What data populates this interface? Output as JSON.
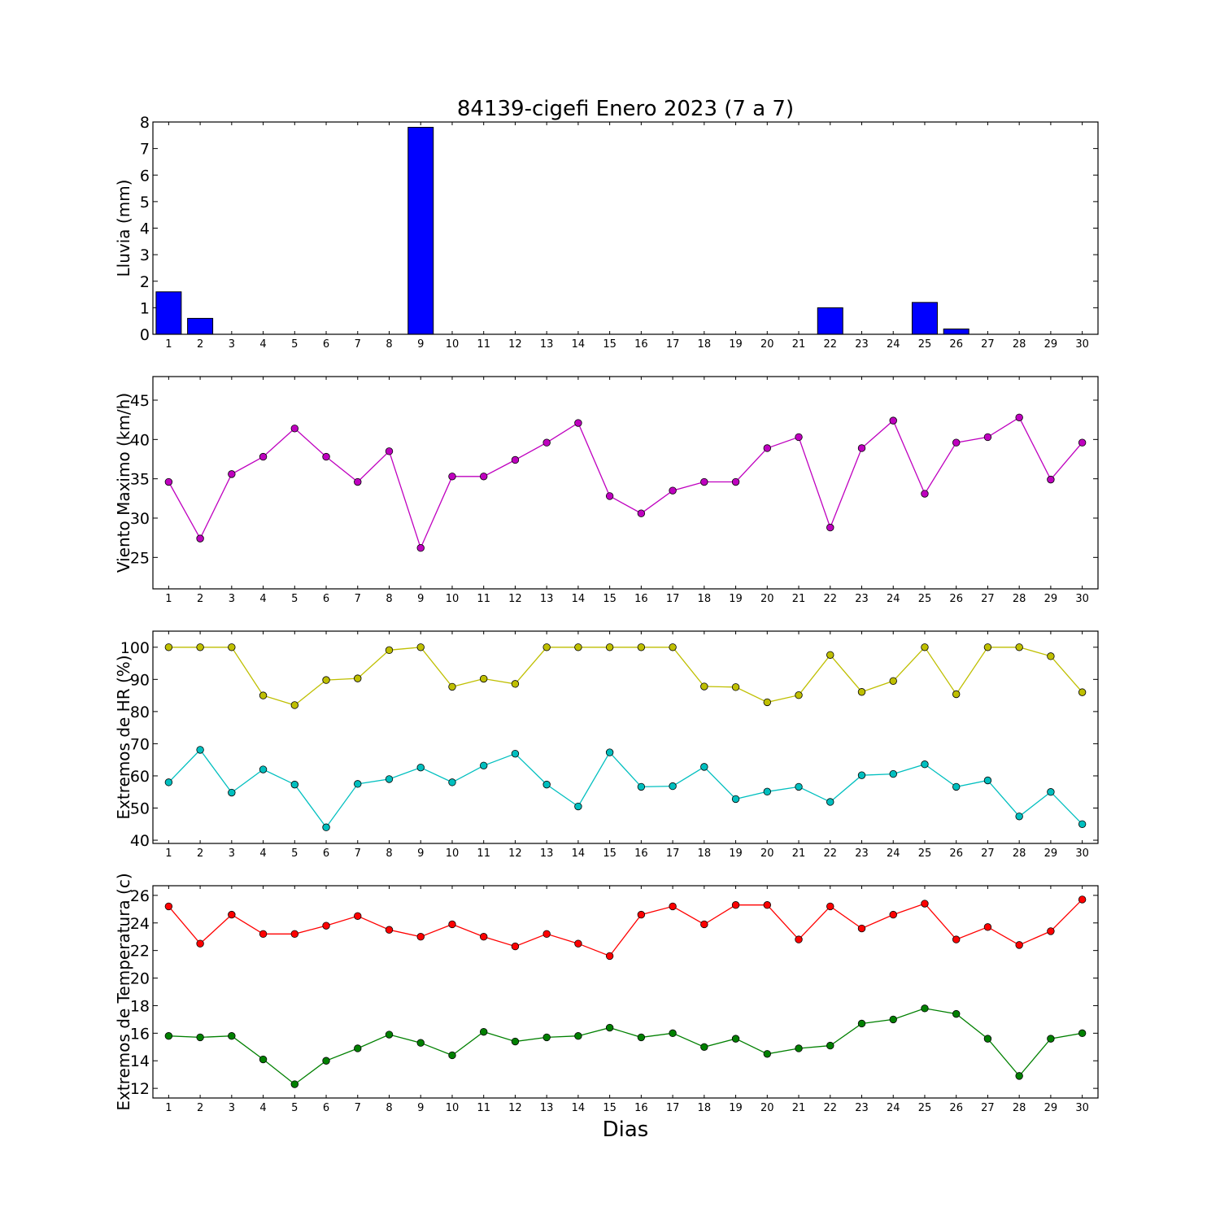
{
  "title": "84139-cigefi Enero 2023  (7 a 7)",
  "xlabel": "Dias",
  "chart_data": [
    {
      "type": "bar",
      "ylabel": "Lluvia (mm)",
      "x": [
        1,
        2,
        3,
        4,
        5,
        6,
        7,
        8,
        9,
        10,
        11,
        12,
        13,
        14,
        15,
        16,
        17,
        18,
        19,
        20,
        21,
        22,
        23,
        24,
        25,
        26,
        27,
        28,
        29,
        30
      ],
      "ylim": [
        0,
        8
      ],
      "yticks": [
        0,
        1,
        2,
        3,
        4,
        5,
        6,
        7,
        8
      ],
      "series": [
        {
          "color": "#0000ff",
          "values": [
            1.6,
            0.6,
            0,
            0,
            0,
            0,
            0,
            0,
            7.8,
            0,
            0,
            0,
            0,
            0,
            0,
            0,
            0,
            0,
            0,
            0,
            0,
            1.0,
            0,
            0,
            1.2,
            0.2,
            0,
            0,
            0,
            0
          ]
        }
      ]
    },
    {
      "type": "line",
      "ylabel": "Viento Maximo (km/h)",
      "x": [
        1,
        2,
        3,
        4,
        5,
        6,
        7,
        8,
        9,
        10,
        11,
        12,
        13,
        14,
        15,
        16,
        17,
        18,
        19,
        20,
        21,
        22,
        23,
        24,
        25,
        26,
        27,
        28,
        29,
        30
      ],
      "ylim": [
        21,
        48
      ],
      "yticks": [
        25,
        30,
        35,
        40,
        45
      ],
      "series": [
        {
          "color": "#bf00bf",
          "values": [
            34.6,
            27.4,
            35.6,
            37.8,
            41.4,
            37.8,
            34.6,
            38.5,
            26.2,
            35.3,
            35.3,
            37.4,
            39.6,
            42.1,
            32.8,
            30.6,
            33.5,
            34.6,
            34.6,
            38.9,
            40.3,
            28.8,
            38.9,
            42.4,
            33.1,
            39.6,
            40.3,
            42.8,
            34.9,
            39.6
          ]
        }
      ]
    },
    {
      "type": "line",
      "ylabel": "Extremos de HR (%)",
      "x": [
        1,
        2,
        3,
        4,
        5,
        6,
        7,
        8,
        9,
        10,
        11,
        12,
        13,
        14,
        15,
        16,
        17,
        18,
        19,
        20,
        21,
        22,
        23,
        24,
        25,
        26,
        27,
        28,
        29,
        30
      ],
      "ylim": [
        39,
        105
      ],
      "yticks": [
        40,
        50,
        60,
        70,
        80,
        90,
        100
      ],
      "series": [
        {
          "color": "#bfbf00",
          "values": [
            100,
            100,
            100,
            85,
            82,
            89.8,
            90.3,
            99.1,
            100,
            87.7,
            90.2,
            88.6,
            100,
            100,
            100,
            100,
            100,
            87.8,
            87.6,
            82.9,
            85.1,
            97.6,
            86.1,
            89.5,
            100,
            85.4,
            100,
            100,
            97.2,
            86
          ]
        },
        {
          "color": "#00bfbf",
          "values": [
            58,
            68.1,
            54.8,
            62,
            57.3,
            44,
            57.5,
            59,
            62.6,
            58,
            63.2,
            66.9,
            57.3,
            50.5,
            67.3,
            56.6,
            56.8,
            62.8,
            52.8,
            55.1,
            56.6,
            51.9,
            60.2,
            60.6,
            63.6,
            56.6,
            58.6,
            47.4,
            55,
            45
          ]
        }
      ]
    },
    {
      "type": "line",
      "ylabel": "Extremos de Temperatura (c)",
      "x": [
        1,
        2,
        3,
        4,
        5,
        6,
        7,
        8,
        9,
        10,
        11,
        12,
        13,
        14,
        15,
        16,
        17,
        18,
        19,
        20,
        21,
        22,
        23,
        24,
        25,
        26,
        27,
        28,
        29,
        30
      ],
      "ylim": [
        11.3,
        26.7
      ],
      "yticks": [
        12,
        14,
        16,
        18,
        20,
        22,
        24,
        26
      ],
      "series": [
        {
          "color": "#ff0000",
          "values": [
            25.2,
            22.5,
            24.6,
            23.2,
            23.2,
            23.8,
            24.5,
            23.5,
            23,
            23.9,
            23,
            22.3,
            23.2,
            22.5,
            21.6,
            24.6,
            25.2,
            23.9,
            25.3,
            25.3,
            22.8,
            25.2,
            23.6,
            24.6,
            25.4,
            22.8,
            23.7,
            22.4,
            23.4,
            25.7
          ]
        },
        {
          "color": "#008000",
          "values": [
            15.8,
            15.7,
            15.8,
            14.1,
            12.3,
            14,
            14.9,
            15.9,
            15.3,
            14.4,
            16.1,
            15.4,
            15.7,
            15.8,
            16.4,
            15.7,
            16,
            15,
            15.6,
            14.5,
            14.9,
            15.1,
            16.7,
            17,
            17.8,
            17.4,
            15.6,
            12.9,
            15.6,
            16
          ]
        }
      ]
    }
  ]
}
